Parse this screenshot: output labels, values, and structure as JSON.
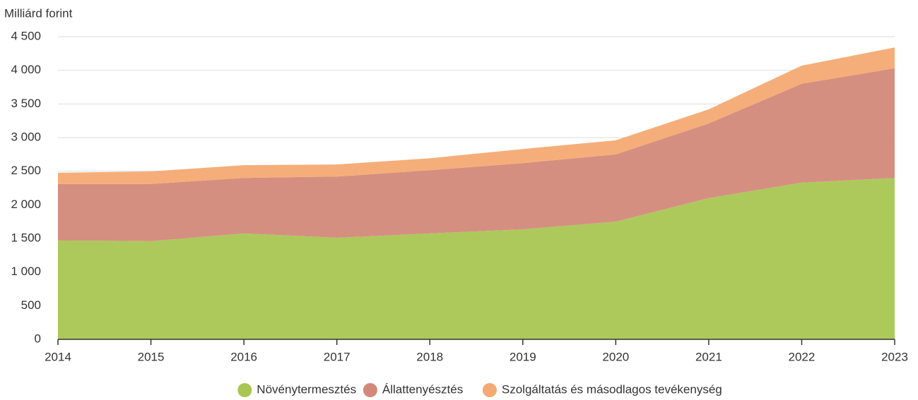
{
  "chart_data": {
    "type": "stacked_area",
    "y_axis_label": "Milliárd forint",
    "categories": [
      "2014",
      "2015",
      "2016",
      "2017",
      "2018",
      "2019",
      "2020",
      "2021",
      "2022",
      "2023"
    ],
    "series": [
      {
        "name": "Növénytermesztés",
        "color": "#a9c653",
        "values": [
          1470,
          1460,
          1575,
          1510,
          1575,
          1635,
          1750,
          2100,
          2330,
          2400
        ]
      },
      {
        "name": "Állattenyésztés",
        "color": "#d3897a",
        "values": [
          840,
          850,
          825,
          910,
          940,
          985,
          1000,
          1110,
          1470,
          1630
        ]
      },
      {
        "name": "Szolgáltatás és másodlagos tevékenység",
        "color": "#f4aa72",
        "values": [
          167,
          187,
          190,
          180,
          177,
          210,
          210,
          210,
          270,
          310
        ]
      }
    ],
    "ylim": [
      0,
      4500
    ],
    "yticks": [
      0,
      500,
      {
        "value": 1000,
        "label": "1 000"
      },
      {
        "value": 1500,
        "label": "1 500"
      },
      {
        "value": 2000,
        "label": "2 000"
      },
      {
        "value": 2500,
        "label": "2 500"
      },
      {
        "value": 3000,
        "label": "3 000"
      },
      {
        "value": 3500,
        "label": "3 500"
      },
      {
        "value": 4000,
        "label": "4 000"
      },
      {
        "value": 4500,
        "label": "4 500"
      }
    ],
    "grid": true,
    "legend": "bottom"
  }
}
